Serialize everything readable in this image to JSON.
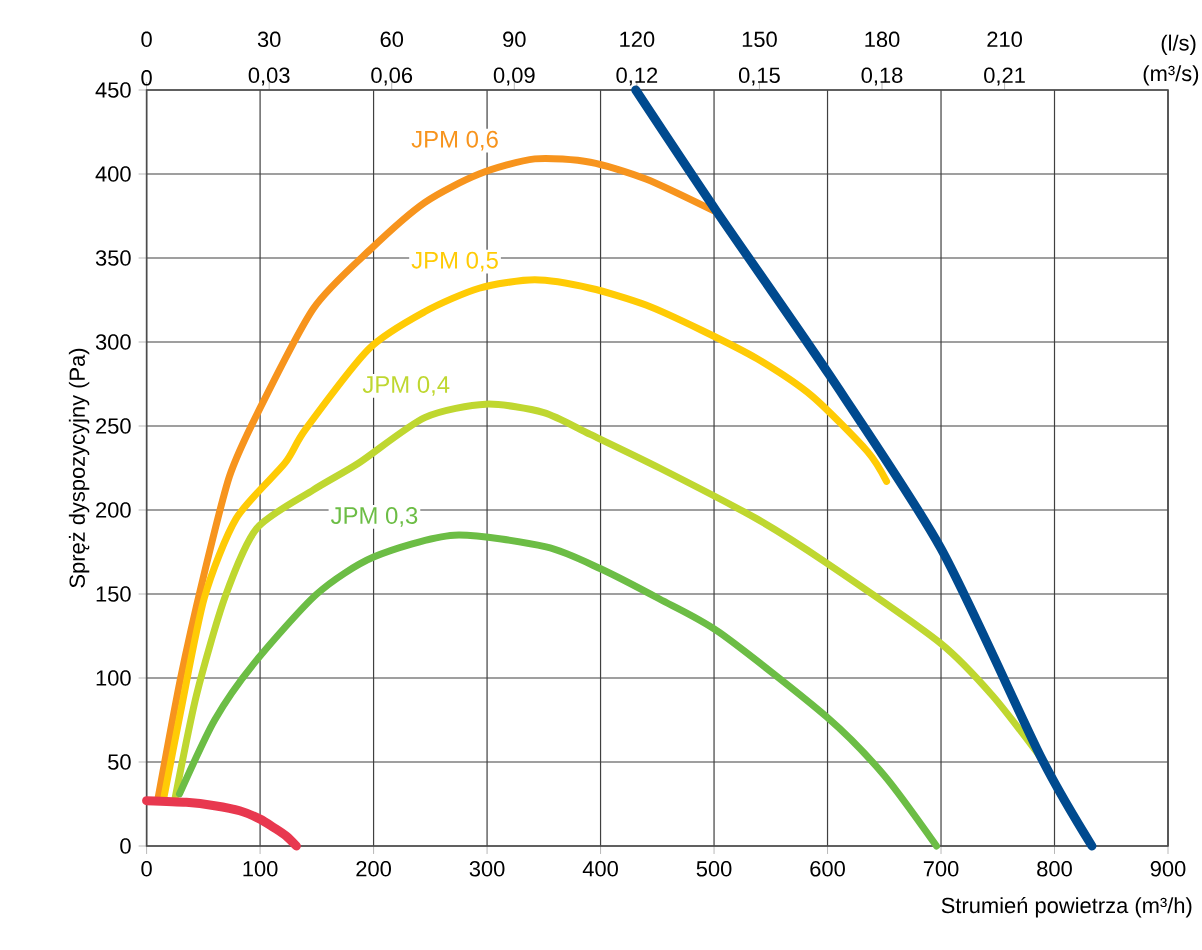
{
  "chart_data": {
    "type": "line",
    "xlabel": "Strumień powietrza (m³/h)",
    "ylabel": "Spręż dyspozycyjny (Pa)",
    "x2label": "(l/s)",
    "annotations": [
      "0",
      "0,03",
      "0,06",
      "0,09",
      "0,12",
      "0,15",
      "0,18",
      "0,21",
      "(m³/s)"
    ],
    "xlim": [
      0,
      900
    ],
    "xticks": [
      0,
      100,
      200,
      300,
      400,
      500,
      600,
      700,
      800,
      900
    ],
    "ylim": [
      0,
      450
    ],
    "yticks": [
      0,
      50,
      100,
      150,
      200,
      250,
      300,
      350,
      400,
      450
    ],
    "x2lim": [
      0,
      250
    ],
    "x2ticks": [
      0,
      30,
      60,
      90,
      120,
      150,
      180,
      210
    ],
    "grid": true,
    "series": [
      {
        "name": "JPM 0,6",
        "color": "#f7941d",
        "x": [
          10,
          30,
          50,
          73,
          98,
          147,
          197,
          245,
          293,
          342,
          391,
          440,
          500
        ],
        "values": [
          28,
          100,
          160,
          220,
          258,
          320,
          355,
          383,
          400,
          409,
          407,
          397,
          378
        ]
      },
      {
        "name": "JPM 0,5",
        "color": "#ffcb05",
        "x": [
          15,
          30,
          51,
          79,
          122,
          140,
          196,
          245,
          293,
          342,
          391,
          440,
          489,
          538,
          586,
          635,
          652
        ],
        "values": [
          28,
          80,
          148,
          195,
          228,
          248,
          296,
          318,
          332,
          337,
          332,
          322,
          307,
          290,
          268,
          235,
          217
        ]
      },
      {
        "name": "JPM 0,4",
        "color": "#bfd730",
        "x": [
          25,
          44,
          69,
          97,
          147,
          187,
          245,
          299,
          350,
          391,
          452,
          537,
          598,
          699,
          746,
          792
        ],
        "values": [
          28,
          90,
          148,
          189,
          212,
          228,
          255,
          263,
          258,
          245,
          225,
          195,
          169,
          121,
          89,
          49
        ]
      },
      {
        "name": "JPM 0,3",
        "color": "#6cbd45",
        "x": [
          29,
          60,
          95,
          150,
          200,
          271,
          352,
          400,
          452,
          505,
          599,
          650,
          696
        ],
        "values": [
          31,
          75,
          109,
          150,
          172,
          185,
          178,
          165,
          147,
          127,
          77,
          42,
          0
        ]
      },
      {
        "color": "#004a8f",
        "x": [
          431,
          502,
          602,
          700,
          788,
          833
        ],
        "values": [
          450,
          378,
          280,
          177,
          53,
          0
        ]
      },
      {
        "color": "#e8384f",
        "x": [
          0,
          35,
          60,
          82,
          100,
          112,
          123,
          132
        ],
        "values": [
          27,
          26,
          24,
          21,
          16,
          11,
          6,
          0
        ]
      }
    ]
  }
}
